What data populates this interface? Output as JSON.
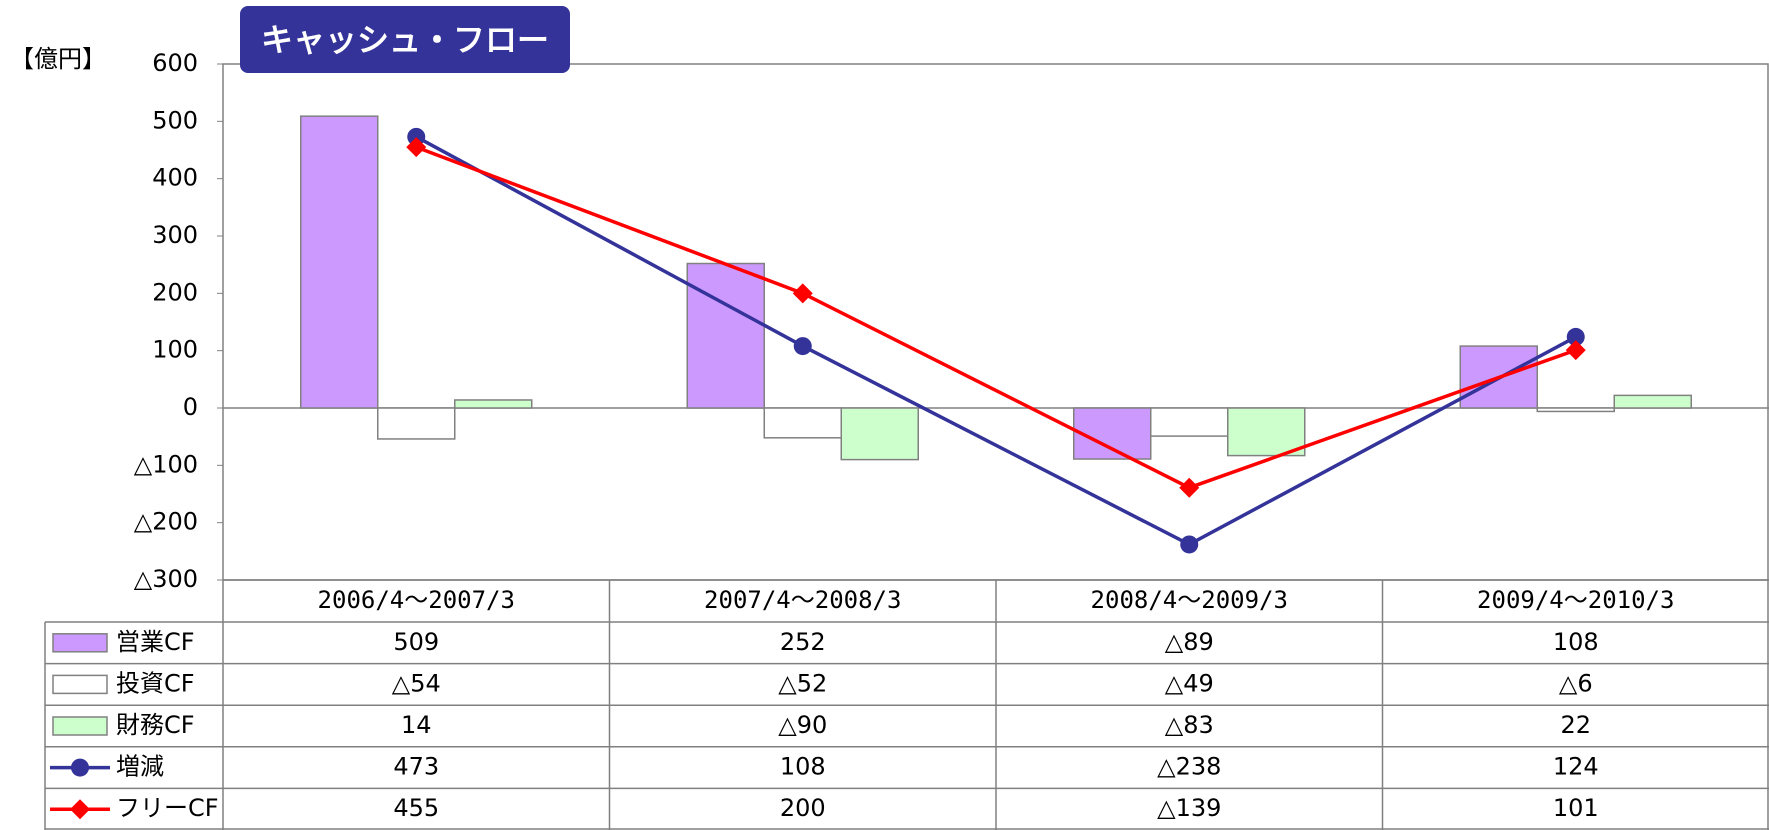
{
  "chart_data": {
    "type": "bar",
    "title": "キャッシュ・フロー",
    "y_label": "【億円】",
    "categories": [
      "2006/4～2007/3",
      "2007/4～2008/3",
      "2008/4～2009/3",
      "2009/4～2010/3"
    ],
    "series": [
      {
        "name": "営業CF",
        "type": "bar",
        "color": "#cc99ff",
        "values": [
          509,
          252,
          -89,
          108
        ],
        "value_labels": [
          "509",
          "252",
          "△89",
          "108"
        ]
      },
      {
        "name": "投資CF",
        "type": "bar",
        "color": "#ffffff",
        "values": [
          -54,
          -52,
          -49,
          -6
        ],
        "value_labels": [
          "△54",
          "△52",
          "△49",
          "△6"
        ]
      },
      {
        "name": "財務CF",
        "type": "bar",
        "color": "#ccffcc",
        "values": [
          14,
          -90,
          -83,
          22
        ],
        "value_labels": [
          "14",
          "△90",
          "△83",
          "22"
        ]
      },
      {
        "name": "増減",
        "type": "line",
        "marker": "circle",
        "color": "#333399",
        "values": [
          473,
          108,
          -238,
          124
        ],
        "value_labels": [
          "473",
          "108",
          "△238",
          "124"
        ]
      },
      {
        "name": "フリーCF",
        "type": "line",
        "marker": "diamond",
        "color": "#ff0000",
        "values": [
          455,
          200,
          -139,
          101
        ],
        "value_labels": [
          "455",
          "200",
          "△139",
          "101"
        ]
      }
    ],
    "ylim": [
      -300,
      600
    ],
    "yticks": [
      {
        "value": -300,
        "label": "△300"
      },
      {
        "value": -200,
        "label": "△200"
      },
      {
        "value": -100,
        "label": "△100"
      },
      0,
      100,
      200,
      300,
      400,
      500,
      600
    ]
  }
}
